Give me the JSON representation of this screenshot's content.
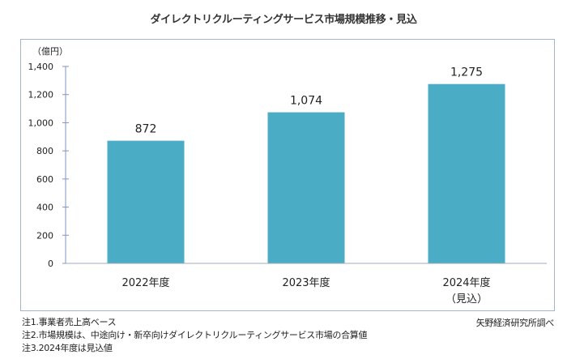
{
  "chart_data": {
    "type": "bar",
    "title": "ダイレクトリクルーティングサービス市場規模推移・見込",
    "ylabel": "（億円）",
    "xlabel": "",
    "categories": [
      "2022年度",
      "2023年度",
      "2024年度"
    ],
    "category_sublabels": [
      "",
      "",
      "（見込）"
    ],
    "values": [
      872,
      1074,
      1275
    ],
    "value_labels": [
      "872",
      "1,074",
      "1,275"
    ],
    "ylim": [
      0,
      1400
    ],
    "yticks": [
      0,
      200,
      400,
      600,
      800,
      1000,
      1200,
      1400
    ],
    "ytick_labels": [
      "0",
      "200",
      "400",
      "600",
      "800",
      "1,000",
      "1,200",
      "1,400"
    ],
    "grid": false,
    "bar_color": "#4bacc6",
    "axis_color": "#7f96c4"
  },
  "notes": [
    "注1.事業者売上高ベース",
    "注2.市場規模は、中途向け・新卒向けダイレクトリクルーティングサービス市場の合算値",
    "注3.2024年度は見込値"
  ],
  "source": "矢野経済研究所調べ"
}
